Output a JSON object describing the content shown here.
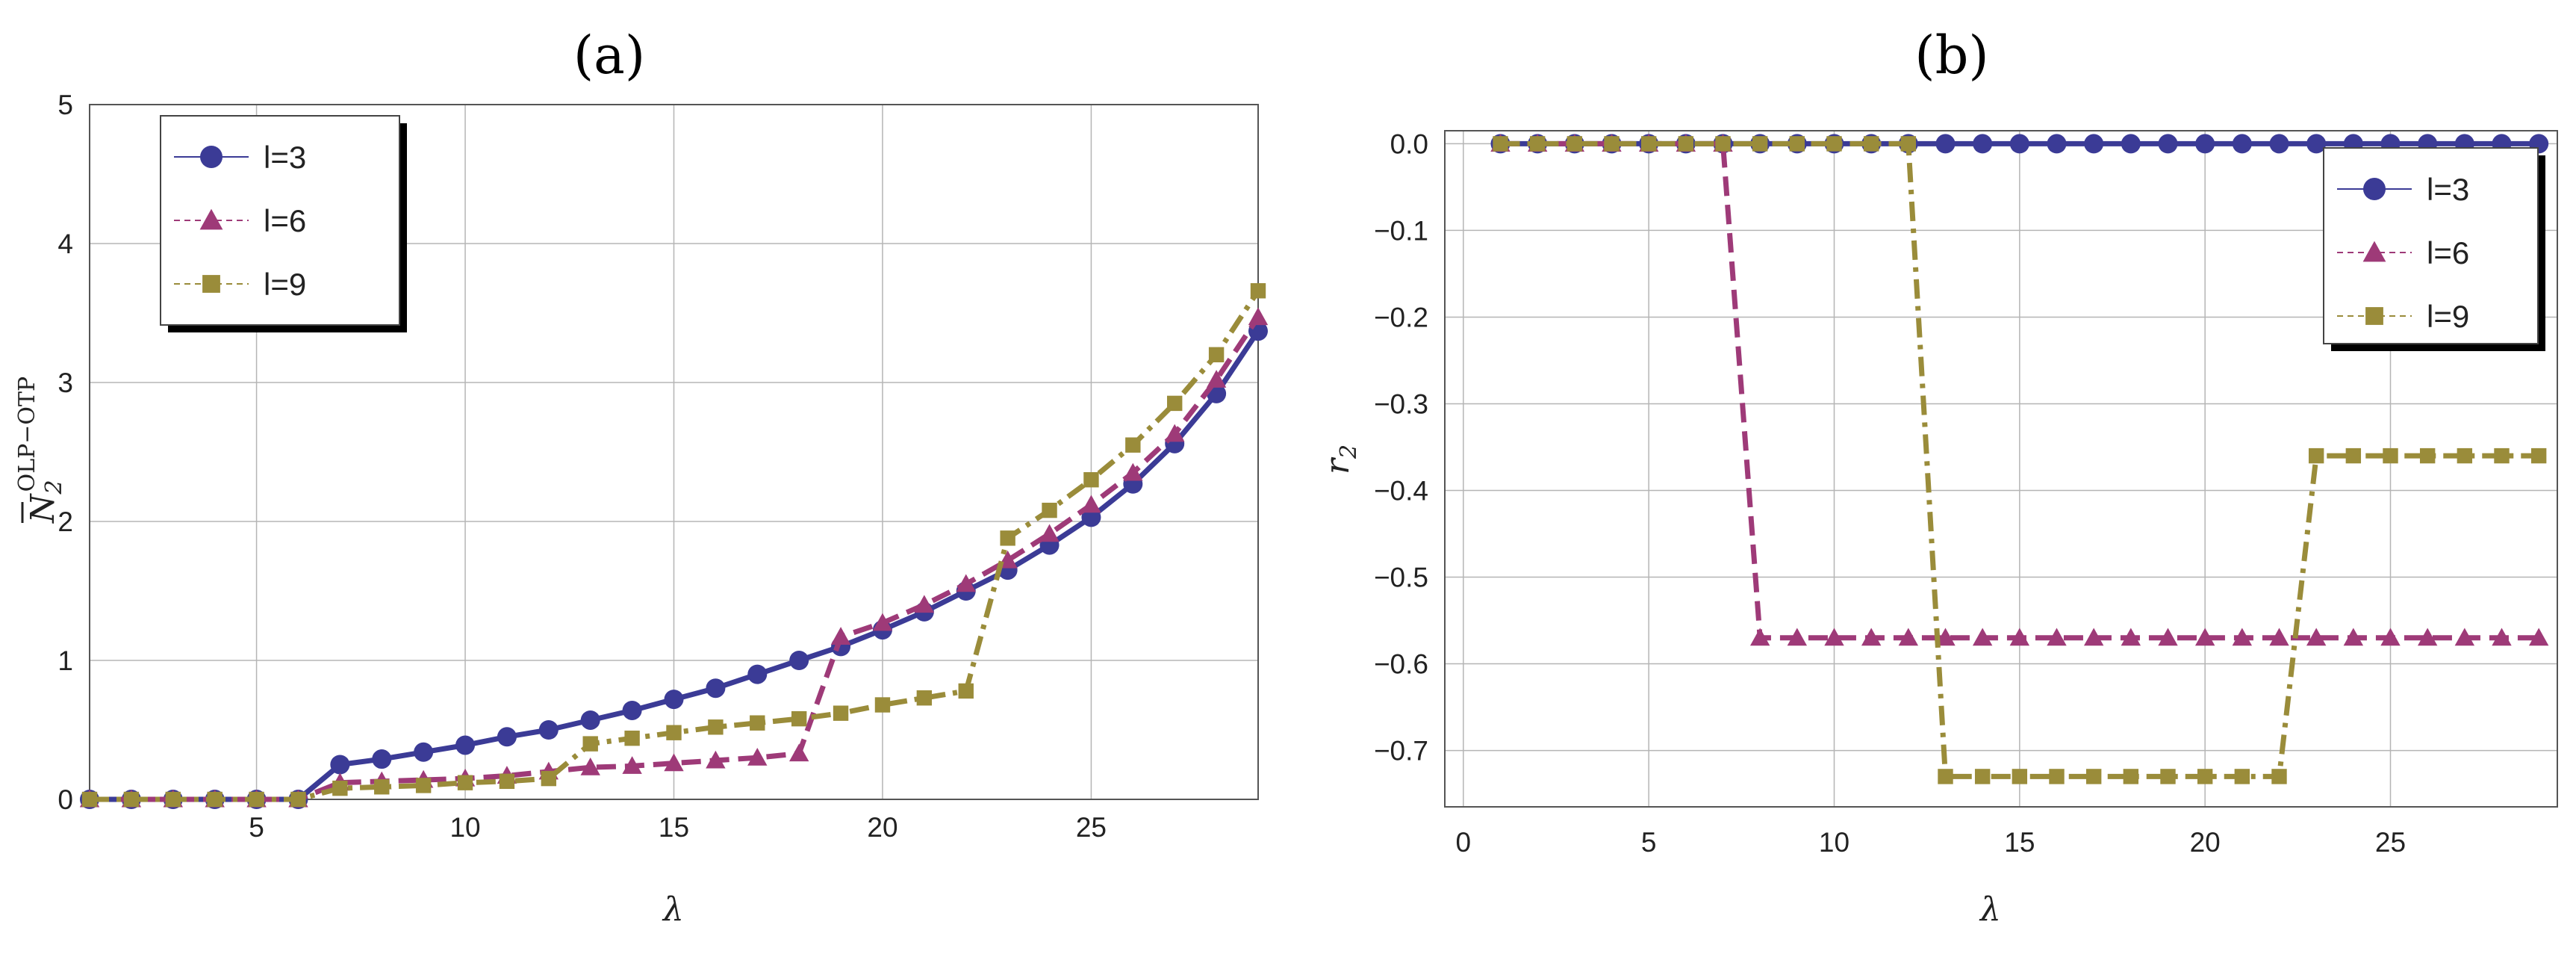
{
  "chart_data": [
    {
      "type": "line",
      "panel": "(a)",
      "title": "(a)",
      "xlabel": "λ",
      "ylabel_main": "N",
      "ylabel_sub": "2",
      "ylabel_sup": "OLP−OTP",
      "xlim": [
        1,
        29
      ],
      "ylim": [
        0,
        5
      ],
      "xticks": [
        5,
        10,
        15,
        20,
        25
      ],
      "yticks": [
        0,
        1,
        2,
        3,
        4,
        5
      ],
      "xtick_labels": [
        "5",
        "10",
        "15",
        "20",
        "25"
      ],
      "ytick_labels": [
        "0",
        "1",
        "2",
        "3",
        "4",
        "5"
      ],
      "grid": true,
      "legend_position": "top-left",
      "x": [
        1,
        2,
        3,
        4,
        5,
        6,
        7,
        8,
        9,
        10,
        11,
        12,
        13,
        14,
        15,
        16,
        17,
        18,
        19,
        20,
        21,
        22,
        23,
        24,
        25,
        26,
        27,
        28,
        29
      ],
      "series": [
        {
          "name": "l=3",
          "color": "#3b3b96",
          "marker": "circle",
          "dash": "solid",
          "values": [
            0,
            0,
            0,
            0,
            0,
            0,
            0.25,
            0.29,
            0.34,
            0.39,
            0.45,
            0.5,
            0.57,
            0.64,
            0.72,
            0.8,
            0.9,
            1.0,
            1.1,
            1.22,
            1.35,
            1.5,
            1.65,
            1.83,
            2.03,
            2.27,
            2.56,
            2.92,
            3.37
          ]
        },
        {
          "name": "l=6",
          "color": "#9e3a78",
          "marker": "triangle",
          "dash": "dashed",
          "values": [
            0,
            0,
            0,
            0,
            0,
            0,
            0.12,
            0.13,
            0.14,
            0.15,
            0.17,
            0.2,
            0.23,
            0.24,
            0.26,
            0.28,
            0.3,
            0.33,
            1.17,
            1.27,
            1.4,
            1.55,
            1.72,
            1.91,
            2.12,
            2.35,
            2.63,
            3.02,
            3.47
          ]
        },
        {
          "name": "l=9",
          "color": "#9a8c3a",
          "marker": "square",
          "dash": "dashdot",
          "values": [
            0,
            0,
            0,
            0,
            0,
            0,
            0.08,
            0.09,
            0.1,
            0.12,
            0.13,
            0.15,
            0.4,
            0.44,
            0.48,
            0.52,
            0.55,
            0.58,
            0.62,
            0.68,
            0.73,
            0.78,
            1.88,
            2.08,
            2.3,
            2.55,
            2.85,
            3.2,
            3.66
          ]
        }
      ]
    },
    {
      "type": "line",
      "panel": "(b)",
      "title": "(b)",
      "xlabel": "λ",
      "ylabel_main": "r",
      "ylabel_sub": "2",
      "xlim": [
        -0.5,
        29.5
      ],
      "ylim": [
        -0.765,
        0.015
      ],
      "xticks": [
        0,
        5,
        10,
        15,
        20,
        25
      ],
      "yticks": [
        0.0,
        -0.1,
        -0.2,
        -0.3,
        -0.4,
        -0.5,
        -0.6,
        -0.7
      ],
      "xtick_labels": [
        "0",
        "5",
        "10",
        "15",
        "20",
        "25"
      ],
      "ytick_labels": [
        "0.0",
        "−0.1",
        "−0.2",
        "−0.3",
        "−0.4",
        "−0.5",
        "−0.6",
        "−0.7"
      ],
      "grid": true,
      "legend_position": "top-right",
      "x": [
        1,
        2,
        3,
        4,
        5,
        6,
        7,
        8,
        9,
        10,
        11,
        12,
        13,
        14,
        15,
        16,
        17,
        18,
        19,
        20,
        21,
        22,
        23,
        24,
        25,
        26,
        27,
        28,
        29
      ],
      "series": [
        {
          "name": "l=3",
          "color": "#3b3b96",
          "marker": "circle",
          "dash": "solid",
          "values": [
            0,
            0,
            0,
            0,
            0,
            0,
            0,
            0,
            0,
            0,
            0,
            0,
            0,
            0,
            0,
            0,
            0,
            0,
            0,
            0,
            0,
            0,
            0,
            0,
            0,
            0,
            0,
            0,
            0
          ]
        },
        {
          "name": "l=6",
          "color": "#9e3a78",
          "marker": "triangle",
          "dash": "dashed",
          "values": [
            0,
            0,
            0,
            0,
            0,
            0,
            0,
            -0.57,
            -0.57,
            -0.57,
            -0.57,
            -0.57,
            -0.57,
            -0.57,
            -0.57,
            -0.57,
            -0.57,
            -0.57,
            -0.57,
            -0.57,
            -0.57,
            -0.57,
            -0.57,
            -0.57,
            -0.57,
            -0.57,
            -0.57,
            -0.57,
            -0.57
          ]
        },
        {
          "name": "l=9",
          "color": "#9a8c3a",
          "marker": "square",
          "dash": "dashdot",
          "values": [
            0,
            0,
            0,
            0,
            0,
            0,
            0,
            0,
            0,
            0,
            0,
            0,
            -0.73,
            -0.73,
            -0.73,
            -0.73,
            -0.73,
            -0.73,
            -0.73,
            -0.73,
            -0.73,
            -0.73,
            -0.36,
            -0.36,
            -0.36,
            -0.36,
            -0.36,
            -0.36,
            -0.36
          ]
        }
      ]
    }
  ]
}
